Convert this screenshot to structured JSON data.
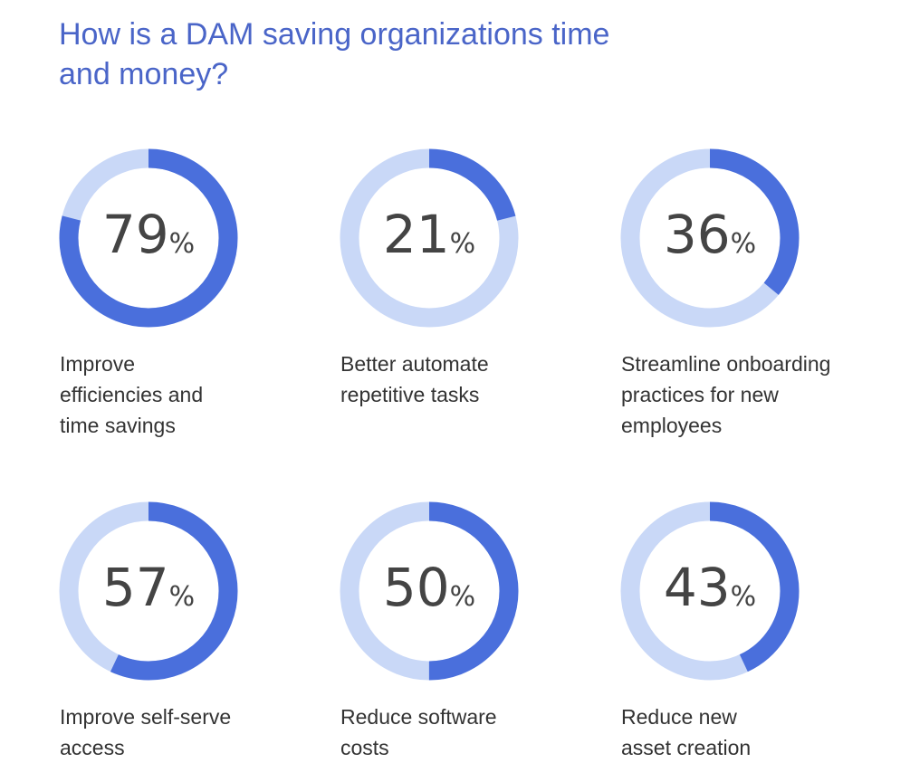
{
  "title": "How is a DAM saving organizations time and money?",
  "colors": {
    "filled": "#4a6fdc",
    "remaining": "#c9d8f7",
    "title": "#4a65c8"
  },
  "chart_data": {
    "type": "donut",
    "title": "How is a DAM saving organizations time and money?",
    "items": [
      {
        "label": "Improve efficiencies and time savings",
        "value": 79,
        "display": "79",
        "unit": "%"
      },
      {
        "label": "Better automate repetitive tasks",
        "value": 21,
        "display": "21",
        "unit": "%"
      },
      {
        "label": "Streamline onboarding practices for new employees",
        "value": 36,
        "display": "36",
        "unit": "%"
      },
      {
        "label": "Improve self-serve access",
        "value": 57,
        "display": "57",
        "unit": "%"
      },
      {
        "label": "Reduce software costs",
        "value": 50,
        "display": "50",
        "unit": "%"
      },
      {
        "label": "Reduce new asset creation",
        "value": 43,
        "display": "43",
        "unit": "%"
      }
    ]
  }
}
